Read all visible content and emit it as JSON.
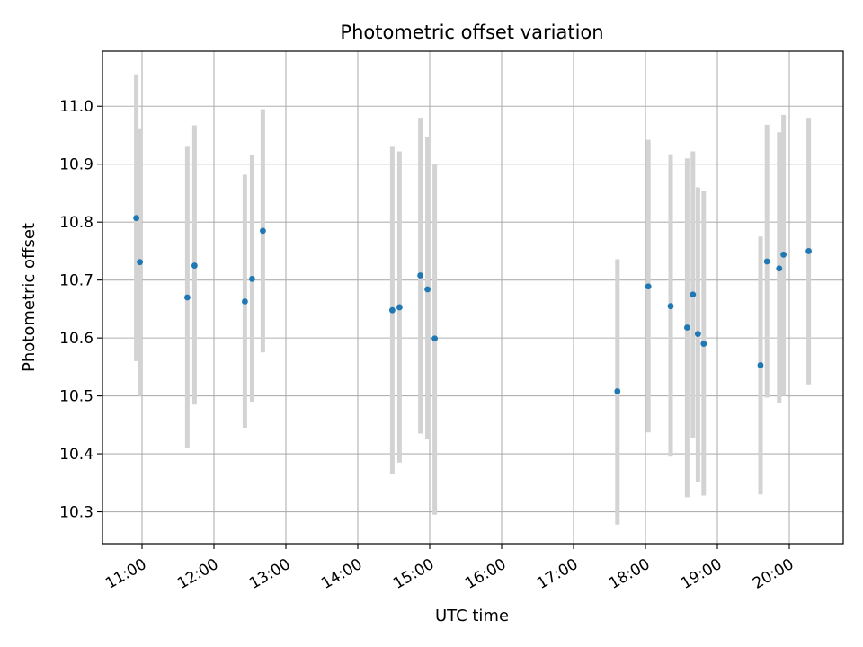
{
  "chart_data": {
    "type": "scatter",
    "title": "Photometric offset variation",
    "xlabel": "UTC time",
    "ylabel": "Photometric offset",
    "grid": true,
    "x_unit": "hour",
    "xlim": [
      10.45,
      20.75
    ],
    "ylim": [
      10.245,
      11.095
    ],
    "x_ticks": [
      {
        "value": 11,
        "label": "11:00"
      },
      {
        "value": 12,
        "label": "12:00"
      },
      {
        "value": 13,
        "label": "13:00"
      },
      {
        "value": 14,
        "label": "14:00"
      },
      {
        "value": 15,
        "label": "15:00"
      },
      {
        "value": 16,
        "label": "16:00"
      },
      {
        "value": 17,
        "label": "17:00"
      },
      {
        "value": 18,
        "label": "18:00"
      },
      {
        "value": 19,
        "label": "19:00"
      },
      {
        "value": 20,
        "label": "20:00"
      }
    ],
    "y_ticks": [
      {
        "value": 10.3,
        "label": "10.3"
      },
      {
        "value": 10.4,
        "label": "10.4"
      },
      {
        "value": 10.5,
        "label": "10.5"
      },
      {
        "value": 10.6,
        "label": "10.6"
      },
      {
        "value": 10.7,
        "label": "10.7"
      },
      {
        "value": 10.8,
        "label": "10.8"
      },
      {
        "value": 10.9,
        "label": "10.9"
      },
      {
        "value": 11.0,
        "label": "11.0"
      }
    ],
    "point_color": "#1f77b4",
    "errorbar_color": "#d3d3d3",
    "points": [
      {
        "x": 10.92,
        "y": 10.807,
        "err_low": 10.56,
        "err_high": 11.055
      },
      {
        "x": 10.97,
        "y": 10.731,
        "err_low": 10.5,
        "err_high": 10.962
      },
      {
        "x": 11.63,
        "y": 10.67,
        "err_low": 10.41,
        "err_high": 10.93
      },
      {
        "x": 11.73,
        "y": 10.725,
        "err_low": 10.485,
        "err_high": 10.967
      },
      {
        "x": 12.43,
        "y": 10.663,
        "err_low": 10.445,
        "err_high": 10.882
      },
      {
        "x": 12.53,
        "y": 10.702,
        "err_low": 10.49,
        "err_high": 10.915
      },
      {
        "x": 12.68,
        "y": 10.785,
        "err_low": 10.575,
        "err_high": 10.995
      },
      {
        "x": 14.48,
        "y": 10.648,
        "err_low": 10.365,
        "err_high": 10.93
      },
      {
        "x": 14.58,
        "y": 10.653,
        "err_low": 10.385,
        "err_high": 10.922
      },
      {
        "x": 14.87,
        "y": 10.708,
        "err_low": 10.435,
        "err_high": 10.98
      },
      {
        "x": 14.97,
        "y": 10.684,
        "err_low": 10.425,
        "err_high": 10.947
      },
      {
        "x": 15.07,
        "y": 10.599,
        "err_low": 10.295,
        "err_high": 10.9
      },
      {
        "x": 17.61,
        "y": 10.508,
        "err_low": 10.278,
        "err_high": 10.736
      },
      {
        "x": 18.04,
        "y": 10.689,
        "err_low": 10.437,
        "err_high": 10.942
      },
      {
        "x": 18.35,
        "y": 10.655,
        "err_low": 10.395,
        "err_high": 10.917
      },
      {
        "x": 18.58,
        "y": 10.618,
        "err_low": 10.325,
        "err_high": 10.91
      },
      {
        "x": 18.66,
        "y": 10.675,
        "err_low": 10.428,
        "err_high": 10.922
      },
      {
        "x": 18.73,
        "y": 10.607,
        "err_low": 10.352,
        "err_high": 10.86
      },
      {
        "x": 18.81,
        "y": 10.59,
        "err_low": 10.328,
        "err_high": 10.853
      },
      {
        "x": 19.6,
        "y": 10.553,
        "err_low": 10.33,
        "err_high": 10.775
      },
      {
        "x": 19.69,
        "y": 10.732,
        "err_low": 10.497,
        "err_high": 10.968
      },
      {
        "x": 19.86,
        "y": 10.72,
        "err_low": 10.487,
        "err_high": 10.955
      },
      {
        "x": 19.92,
        "y": 10.744,
        "err_low": 10.5,
        "err_high": 10.985
      },
      {
        "x": 20.27,
        "y": 10.75,
        "err_low": 10.52,
        "err_high": 10.98
      }
    ]
  }
}
